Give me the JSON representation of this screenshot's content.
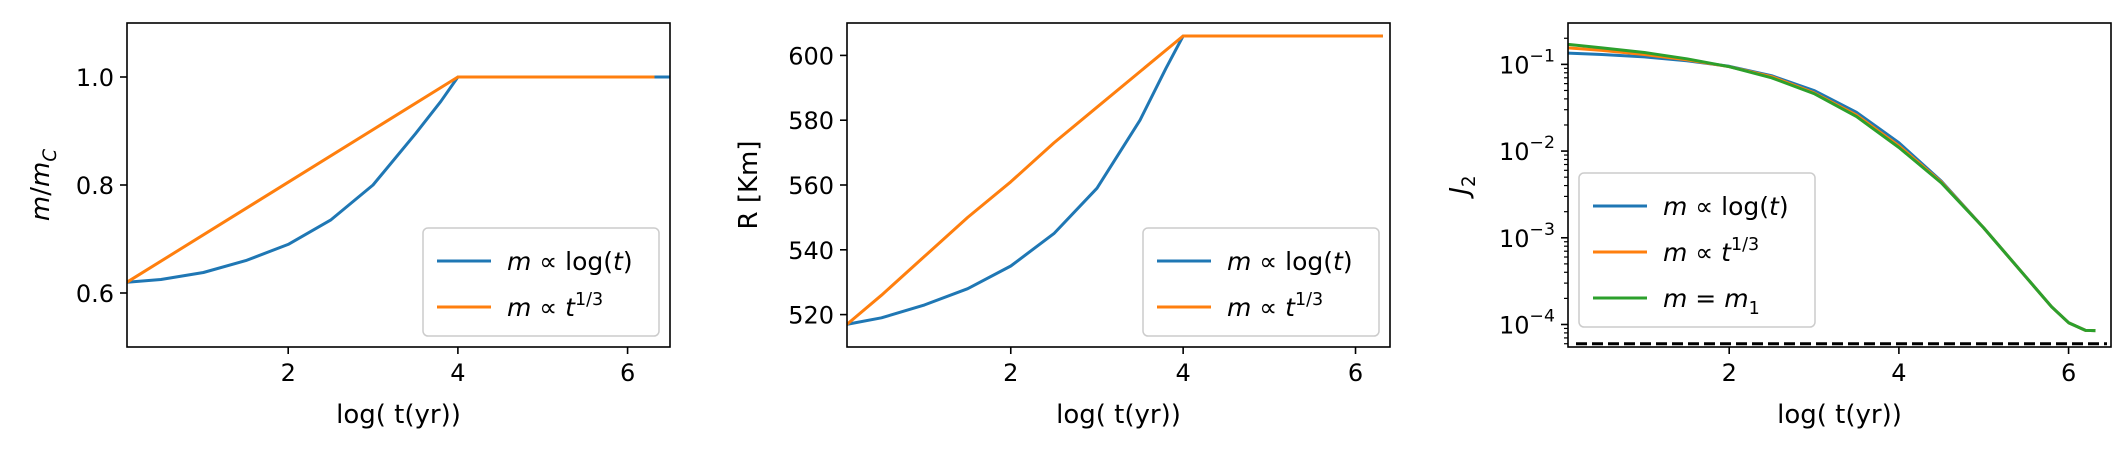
{
  "chart_data": [
    {
      "type": "line",
      "xlabel": "log( t(yr))",
      "ylabel": "m/m_C",
      "xlim": [
        0.1,
        6.5
      ],
      "ylim": [
        0.5,
        1.1
      ],
      "yscale": "linear",
      "xticks": [
        2,
        4,
        6
      ],
      "yticks": [
        0.6,
        0.8,
        1.0
      ],
      "ytick_labels": [
        "0.6",
        "0.8",
        "1.0"
      ],
      "legend_position": "lower right",
      "series": [
        {
          "name": "m ∝ log(t)",
          "color": "#1f77b4",
          "x": [
            0.1,
            0.5,
            1.0,
            1.5,
            2.0,
            2.5,
            3.0,
            3.5,
            3.8,
            4.0,
            5.0,
            6.0,
            6.5
          ],
          "y": [
            0.62,
            0.625,
            0.638,
            0.66,
            0.69,
            0.735,
            0.8,
            0.895,
            0.955,
            1.0,
            1.0,
            1.0,
            1.0
          ]
        },
        {
          "name": "m ∝ t^{1/3}",
          "color": "#ff7f0e",
          "x": [
            0.1,
            4.0,
            6.3
          ],
          "y": [
            0.62,
            1.0,
            1.0
          ]
        }
      ]
    },
    {
      "type": "line",
      "xlabel": "log( t(yr))",
      "ylabel": "R [Km]",
      "xlim": [
        0.1,
        6.4
      ],
      "ylim": [
        510,
        610
      ],
      "yscale": "linear",
      "xticks": [
        2,
        4,
        6
      ],
      "yticks": [
        520,
        540,
        560,
        580,
        600
      ],
      "ytick_labels": [
        "520",
        "540",
        "560",
        "580",
        "600"
      ],
      "legend_position": "lower right",
      "series": [
        {
          "name": "m ∝ log(t)",
          "color": "#1f77b4",
          "x": [
            0.1,
            0.5,
            1.0,
            1.5,
            2.0,
            2.5,
            3.0,
            3.5,
            3.8,
            4.0,
            5.0,
            6.0,
            6.3
          ],
          "y": [
            517,
            519,
            523,
            528,
            535,
            545,
            559,
            580,
            596,
            606,
            606,
            606,
            606
          ]
        },
        {
          "name": "m ∝ t^{1/3}",
          "color": "#ff7f0e",
          "x": [
            0.1,
            0.5,
            1.0,
            1.5,
            2.0,
            2.5,
            3.0,
            3.5,
            4.0,
            5.0,
            6.0,
            6.3
          ],
          "y": [
            517,
            526,
            538,
            550,
            561,
            573,
            584,
            595,
            606,
            606,
            606,
            606
          ]
        }
      ]
    },
    {
      "type": "line",
      "xlabel": "log( t(yr))",
      "ylabel": "J_2",
      "xlim": [
        0.1,
        6.5
      ],
      "ylim": [
        5.5e-05,
        0.3
      ],
      "yscale": "log",
      "xticks": [
        2,
        4,
        6
      ],
      "yticks": [
        0.0001,
        0.001,
        0.01,
        0.1
      ],
      "ytick_labels": [
        "10^-4",
        "10^-3",
        "10^-2",
        "10^-1"
      ],
      "legend_position": "lower left",
      "reference_line": {
        "y": 6e-05,
        "style": "dashed",
        "color": "#000000"
      },
      "series": [
        {
          "name": "m ∝ log(t)",
          "color": "#1f77b4",
          "x": [
            0.1,
            0.5,
            1.0,
            1.5,
            2.0,
            2.5,
            3.0,
            3.5,
            4.0,
            4.5,
            5.0,
            5.5,
            5.8,
            6.0,
            6.2,
            6.3
          ],
          "y": [
            0.135,
            0.13,
            0.122,
            0.11,
            0.095,
            0.074,
            0.05,
            0.028,
            0.0125,
            0.0045,
            0.0013,
            0.00035,
            0.00016,
            0.000105,
            8.55e-05,
            8.5e-05
          ]
        },
        {
          "name": "m ∝ t^{1/3}",
          "color": "#ff7f0e",
          "x": [
            0.1,
            0.5,
            1.0,
            1.5,
            2.0,
            2.5,
            3.0,
            3.5,
            4.0,
            4.5,
            5.0,
            5.5,
            5.8,
            6.0,
            6.2,
            6.3
          ],
          "y": [
            0.155,
            0.145,
            0.13,
            0.113,
            0.094,
            0.072,
            0.047,
            0.026,
            0.0115,
            0.0044,
            0.0013,
            0.00035,
            0.00016,
            0.000105,
            8.55e-05,
            8.5e-05
          ]
        },
        {
          "name": "m = m_1",
          "color": "#2ca02c",
          "x": [
            0.1,
            0.5,
            1.0,
            1.5,
            2.0,
            2.5,
            3.0,
            3.5,
            4.0,
            4.5,
            5.0,
            5.5,
            5.8,
            6.0,
            6.2,
            6.3
          ],
          "y": [
            0.17,
            0.155,
            0.137,
            0.116,
            0.094,
            0.07,
            0.046,
            0.025,
            0.011,
            0.0043,
            0.0013,
            0.00035,
            0.00016,
            0.000105,
            8.55e-05,
            8.5e-05
          ]
        }
      ]
    }
  ]
}
